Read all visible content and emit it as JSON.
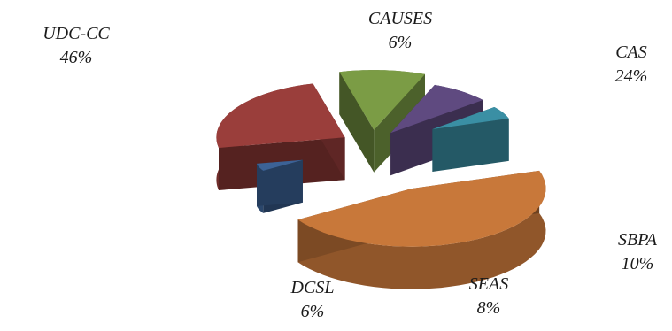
{
  "chart_data": {
    "type": "pie",
    "style": "3d-exploded",
    "title": "",
    "slices": [
      {
        "label": "UDC-CC",
        "value": 46,
        "value_label": "46%",
        "color": "#C8783A"
      },
      {
        "label": "CAUSES",
        "value": 6,
        "value_label": "6%",
        "color": "#3C6296"
      },
      {
        "label": "CAS",
        "value": 24,
        "value_label": "24%",
        "color": "#9A3E3B"
      },
      {
        "label": "SBPA",
        "value": 10,
        "value_label": "10%",
        "color": "#7B9C45"
      },
      {
        "label": "SEAS",
        "value": 8,
        "value_label": "8%",
        "color": "#5F4A80"
      },
      {
        "label": "DCSL",
        "value": 6,
        "value_label": "6%",
        "color": "#3A8FA4"
      }
    ]
  }
}
